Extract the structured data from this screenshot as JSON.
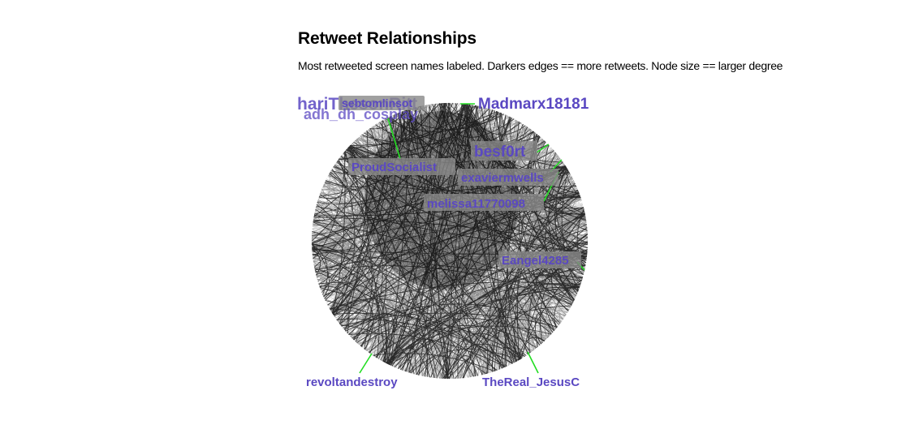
{
  "header": {
    "title": "Retweet Relationships",
    "subtitle": "Most retweeted screen names labeled. Darkers edges == more retweets. Node size == larger degree"
  },
  "colors": {
    "label_text": "#5a48c2",
    "label_box": "#888888",
    "leader_line": "#22dd22",
    "edge": "#000000"
  },
  "labels": [
    {
      "text": "Madmarx18181",
      "boxed": false
    },
    {
      "text": "hariThesonRitt",
      "boxed": false
    },
    {
      "text": "sebtomlinsot",
      "boxed": true
    },
    {
      "text": "adh_dh_cosplay",
      "boxed": false
    },
    {
      "text": "ProudSocialist",
      "boxed": true
    },
    {
      "text": "besf0rt",
      "boxed": true
    },
    {
      "text": "exaviermwells",
      "boxed": true
    },
    {
      "text": "melissa11770098",
      "boxed": true
    },
    {
      "text": "Eangel4285",
      "boxed": true
    },
    {
      "text": "revoltandestroy",
      "boxed": false
    },
    {
      "text": "TheReal_JesusC",
      "boxed": false
    }
  ]
}
